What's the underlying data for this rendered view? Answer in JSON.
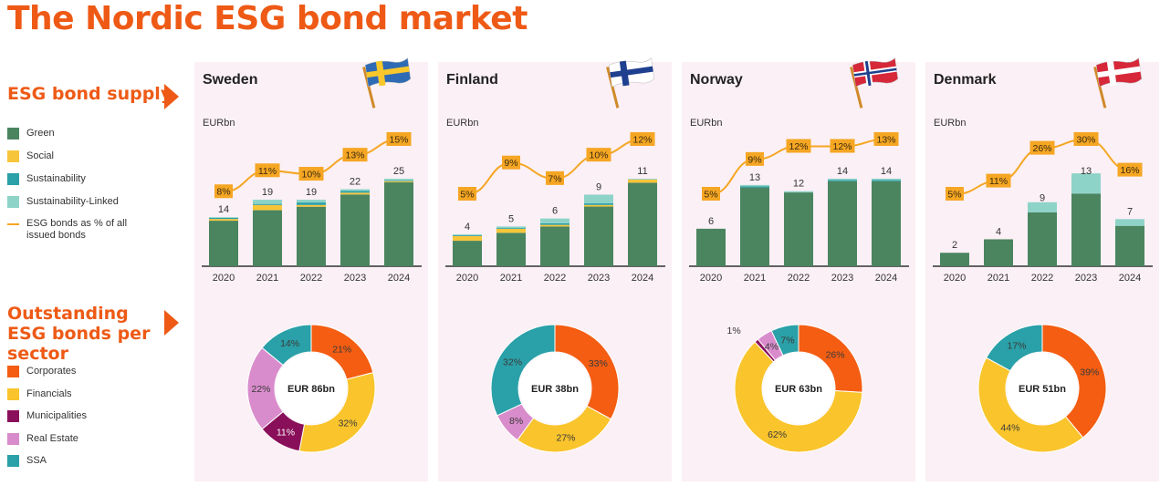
{
  "title": "The Nordic ESG bond market",
  "sections": {
    "supply": "ESG bond supply",
    "sector": "Outstanding ESG bonds per sector"
  },
  "supply_legend": [
    {
      "label": "Green",
      "color": "#4a8560",
      "kind": "box"
    },
    {
      "label": "Social",
      "color": "#f7c53a",
      "kind": "box"
    },
    {
      "label": "Sustainability",
      "color": "#2aa0a8",
      "kind": "box"
    },
    {
      "label": "Sustainability-Linked",
      "color": "#8ed3c8",
      "kind": "box"
    },
    {
      "label": "ESG bonds as % of all issued bonds",
      "color": "#f5a623",
      "kind": "line"
    }
  ],
  "sector_legend": [
    {
      "label": "Corporates",
      "color": "#f45d12"
    },
    {
      "label": "Financials",
      "color": "#f9c42c"
    },
    {
      "label": "Municipalities",
      "color": "#8a0f5a"
    },
    {
      "label": "Real Estate",
      "color": "#d98ccc"
    },
    {
      "label": "SSA",
      "color": "#2aa0a8"
    }
  ],
  "colors": {
    "Green": "#4a8560",
    "Social": "#f7c53a",
    "Sustainability": "#2aa0a8",
    "Sustainability-Linked": "#8ed3c8",
    "line": "#f5a623",
    "Corporates": "#f45d12",
    "Financials": "#f9c42c",
    "Municipalities": "#8a0f5a",
    "Real Estate": "#d98ccc",
    "SSA": "#2aa0a8"
  },
  "chart_data": [
    {
      "type": "bar",
      "country": "Sweden",
      "unit": "EURbn",
      "flag": "sweden-flag",
      "categories": [
        "2020",
        "2021",
        "2022",
        "2023",
        "2024"
      ],
      "series": [
        {
          "name": "Green",
          "values": [
            13,
            16,
            17,
            20.5,
            24
          ]
        },
        {
          "name": "Social",
          "values": [
            0.5,
            1.5,
            0.5,
            0.5,
            0.3
          ]
        },
        {
          "name": "Sustainability",
          "values": [
            0.3,
            0.3,
            0.7,
            0.5,
            0.2
          ]
        },
        {
          "name": "Sustainability-Linked",
          "values": [
            0.2,
            1.2,
            0.8,
            0.5,
            0.5
          ]
        }
      ],
      "totals": [
        "14",
        "19",
        "19",
        "22",
        "25"
      ],
      "line_name": "ESG bonds as % of all issued bonds",
      "line_values": [
        8,
        11,
        10,
        13,
        15
      ],
      "line_labels": [
        "8%",
        "11%",
        "10%",
        "13%",
        "15%"
      ]
    },
    {
      "type": "bar",
      "country": "Finland",
      "unit": "EURbn",
      "flag": "finland-flag",
      "categories": [
        "2020",
        "2021",
        "2022",
        "2023",
        "2024"
      ],
      "series": [
        {
          "name": "Green",
          "values": [
            3.2,
            4.2,
            5,
            7.5,
            10.5
          ]
        },
        {
          "name": "Social",
          "values": [
            0.6,
            0.5,
            0.2,
            0.2,
            0.4
          ]
        },
        {
          "name": "Sustainability",
          "values": [
            0.1,
            0.1,
            0.2,
            0.2,
            0
          ]
        },
        {
          "name": "Sustainability-Linked",
          "values": [
            0.1,
            0.2,
            0.6,
            1.1,
            0.1
          ]
        }
      ],
      "totals": [
        "4",
        "5",
        "6",
        "9",
        "11"
      ],
      "line_name": "ESG bonds as % of all issued bonds",
      "line_values": [
        5,
        9,
        7,
        10,
        12
      ],
      "line_labels": [
        "5%",
        "9%",
        "7%",
        "10%",
        "12%"
      ]
    },
    {
      "type": "bar",
      "country": "Norway",
      "unit": "EURbn",
      "flag": "norway-flag",
      "categories": [
        "2020",
        "2021",
        "2022",
        "2023",
        "2024"
      ],
      "series": [
        {
          "name": "Green",
          "values": [
            6,
            12.6,
            11.8,
            13.6,
            13.6
          ]
        },
        {
          "name": "Social",
          "values": [
            0,
            0,
            0,
            0,
            0
          ]
        },
        {
          "name": "Sustainability",
          "values": [
            0,
            0.2,
            0,
            0.2,
            0.2
          ]
        },
        {
          "name": "Sustainability-Linked",
          "values": [
            0,
            0.2,
            0.2,
            0.2,
            0.2
          ]
        }
      ],
      "totals": [
        "6",
        "13",
        "12",
        "14",
        "14"
      ],
      "line_name": "ESG bonds as % of all issued bonds",
      "line_values": [
        5,
        9,
        12,
        12,
        13
      ],
      "line_labels": [
        "5%",
        "9%",
        "12%",
        "12%",
        "13%"
      ]
    },
    {
      "type": "bar",
      "country": "Denmark",
      "unit": "EURbn",
      "flag": "denmark-flag",
      "categories": [
        "2020",
        "2021",
        "2022",
        "2023",
        "2024"
      ],
      "series": [
        {
          "name": "Green",
          "values": [
            2,
            4,
            8,
            10.8,
            6
          ]
        },
        {
          "name": "Social",
          "values": [
            0,
            0,
            0,
            0,
            0
          ]
        },
        {
          "name": "Sustainability",
          "values": [
            0,
            0,
            0,
            0,
            0
          ]
        },
        {
          "name": "Sustainability-Linked",
          "values": [
            0,
            0,
            1.5,
            3,
            1
          ]
        }
      ],
      "totals": [
        "2",
        "4",
        "9",
        "13",
        "7"
      ],
      "line_name": "ESG bonds as % of all issued bonds",
      "line_values": [
        5,
        11,
        26,
        30,
        16
      ],
      "line_labels": [
        "5%",
        "11%",
        "26%",
        "30%",
        "16%"
      ]
    },
    {
      "type": "pie",
      "country": "Sweden",
      "center_label": "EUR 86bn",
      "slices": [
        {
          "name": "Corporates",
          "value": 21,
          "label": "21%"
        },
        {
          "name": "Financials",
          "value": 32,
          "label": "32%"
        },
        {
          "name": "Municipalities",
          "value": 11,
          "label": "11%"
        },
        {
          "name": "Real Estate",
          "value": 22,
          "label": "22%"
        },
        {
          "name": "SSA",
          "value": 14,
          "label": "14%"
        }
      ]
    },
    {
      "type": "pie",
      "country": "Finland",
      "center_label": "EUR 38bn",
      "slices": [
        {
          "name": "Corporates",
          "value": 33,
          "label": "33%"
        },
        {
          "name": "Financials",
          "value": 27,
          "label": "27%"
        },
        {
          "name": "Real Estate",
          "value": 8,
          "label": "8%"
        },
        {
          "name": "SSA",
          "value": 32,
          "label": "32%"
        }
      ]
    },
    {
      "type": "pie",
      "country": "Norway",
      "center_label": "EUR 63bn",
      "slices": [
        {
          "name": "Corporates",
          "value": 26,
          "label": "26%"
        },
        {
          "name": "Financials",
          "value": 62,
          "label": "62%"
        },
        {
          "name": "Municipalities",
          "value": 1,
          "label": "1%"
        },
        {
          "name": "Real Estate",
          "value": 4,
          "label": "4%"
        },
        {
          "name": "SSA",
          "value": 7,
          "label": "7%"
        }
      ]
    },
    {
      "type": "pie",
      "country": "Denmark",
      "center_label": "EUR 51bn",
      "slices": [
        {
          "name": "Corporates",
          "value": 39,
          "label": "39%"
        },
        {
          "name": "Financials",
          "value": 44,
          "label": "44%"
        },
        {
          "name": "SSA",
          "value": 17,
          "label": "17%"
        }
      ]
    }
  ]
}
